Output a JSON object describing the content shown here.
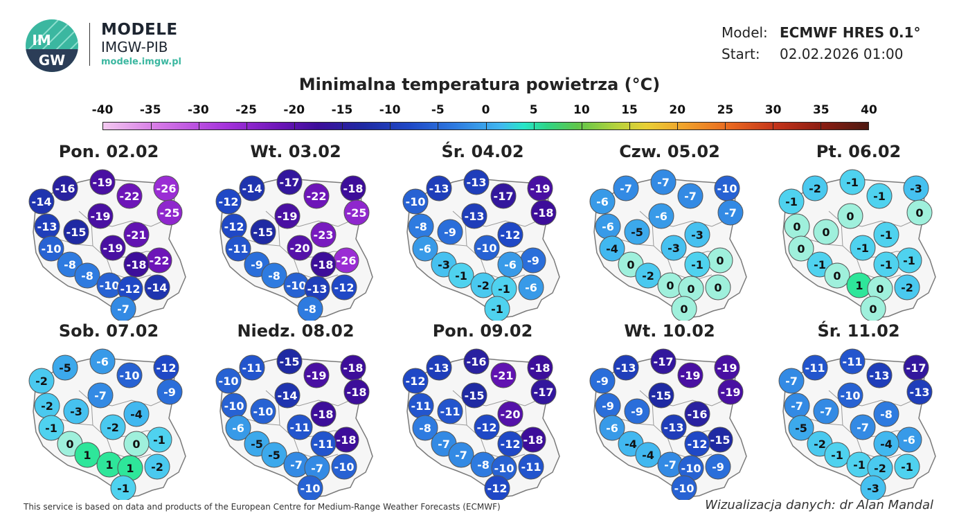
{
  "header": {
    "brand_name": "MODELE",
    "brand_org": "IMGW-PIB",
    "brand_url": "modele.imgw.pl",
    "logo_top": "IM",
    "logo_bottom": "GW",
    "model_label": "Model:",
    "model_value": "ECMWF HRES 0.1°",
    "start_label": "Start:",
    "start_value": "02.02.2026 01:00"
  },
  "title": "Minimalna temperatura powietrza (°C)",
  "scale": {
    "ticks": [
      "-40",
      "-35",
      "-30",
      "-25",
      "-20",
      "-15",
      "-10",
      "-5",
      "0",
      "5",
      "10",
      "15",
      "20",
      "25",
      "30",
      "35",
      "40"
    ],
    "min": -40,
    "max": 40
  },
  "colors": {
    "map_fill": "#f6f6f6",
    "border": "#7a7a7a",
    "stops": [
      [
        -40,
        "#f3c9f0"
      ],
      [
        -34,
        "#d67ae6"
      ],
      [
        -27,
        "#a533db"
      ],
      [
        -22,
        "#6d15b8"
      ],
      [
        -18,
        "#3d0e9a"
      ],
      [
        -15,
        "#1f2aa3"
      ],
      [
        -12,
        "#1f48c6"
      ],
      [
        -8,
        "#2e7be0"
      ],
      [
        -4,
        "#41b8f0"
      ],
      [
        -1,
        "#4fd2ef"
      ],
      [
        0,
        "#9ff0dc"
      ],
      [
        1,
        "#2ee69a"
      ],
      [
        5,
        "#2fd486"
      ],
      [
        10,
        "#5fc64a"
      ],
      [
        15,
        "#b4d23c"
      ],
      [
        20,
        "#e9cf35"
      ],
      [
        25,
        "#f0a12c"
      ],
      [
        30,
        "#e8671f"
      ],
      [
        35,
        "#c2331a"
      ],
      [
        40,
        "#4e1a12"
      ]
    ]
  },
  "panels": [
    {
      "day": "Pon. 02.02",
      "values": [
        "-16",
        "-19",
        "-26",
        "-14",
        "-22",
        "-25",
        "-13",
        "-15",
        "-19",
        "-21",
        "-10",
        "-19",
        "-22",
        "-8",
        "-18",
        "-8",
        "-10",
        "-12",
        "-14",
        "-7"
      ]
    },
    {
      "day": "Wt. 03.02",
      "values": [
        "-14",
        "-17",
        "-18",
        "-12",
        "-22",
        "-25",
        "-12",
        "-15",
        "-19",
        "-23",
        "-11",
        "-20",
        "-26",
        "-9",
        "-18",
        "-8",
        "-10",
        "-13",
        "-12",
        "-8"
      ]
    },
    {
      "day": "Śr. 04.02",
      "values": [
        "-13",
        "-13",
        "-19",
        "-10",
        "-17",
        "-18",
        "-8",
        "-9",
        "-13",
        "-12",
        "-6",
        "-10",
        "-9",
        "-3",
        "-6",
        "-1",
        "-2",
        "-1",
        "-6",
        "-1"
      ]
    },
    {
      "day": "Czw. 05.02",
      "values": [
        "-7",
        "-7",
        "-10",
        "-6",
        "-7",
        "-7",
        "-6",
        "-5",
        "-6",
        "-3",
        "-4",
        "-3",
        "0",
        "0",
        "-1",
        "-2",
        "0",
        "0",
        "0",
        "0"
      ]
    },
    {
      "day": "Pt. 06.02",
      "values": [
        "-2",
        "-1",
        "-3",
        "-1",
        "-1",
        "0",
        "0",
        "0",
        "0",
        "-1",
        "0",
        "-1",
        "-1",
        "-1",
        "-1",
        "0",
        "1",
        "0",
        "-2",
        "0"
      ]
    },
    {
      "day": "Sob. 07.02",
      "values": [
        "-5",
        "-6",
        "-12",
        "-2",
        "-10",
        "-9",
        "-2",
        "-3",
        "-7",
        "-4",
        "-1",
        "-2",
        "-1",
        "0",
        "0",
        "1",
        "1",
        "1",
        "-2",
        "-1"
      ]
    },
    {
      "day": "Niedz. 08.02",
      "values": [
        "-11",
        "-15",
        "-18",
        "-10",
        "-19",
        "-18",
        "-10",
        "-10",
        "-14",
        "-18",
        "-6",
        "-11",
        "-18",
        "-5",
        "-11",
        "-5",
        "-7",
        "-7",
        "-10",
        "-10"
      ]
    },
    {
      "day": "Pon. 09.02",
      "values": [
        "-13",
        "-16",
        "-18",
        "-12",
        "-21",
        "-17",
        "-11",
        "-11",
        "-15",
        "-20",
        "-8",
        "-12",
        "-18",
        "-7",
        "-12",
        "-7",
        "-8",
        "-10",
        "-11",
        "-12"
      ]
    },
    {
      "day": "Wt. 10.02",
      "values": [
        "-13",
        "-17",
        "-19",
        "-9",
        "-19",
        "-19",
        "-9",
        "-9",
        "-15",
        "-16",
        "-6",
        "-13",
        "-15",
        "-4",
        "-12",
        "-4",
        "-7",
        "-10",
        "-9",
        "-10"
      ]
    },
    {
      "day": "Śr. 11.02",
      "values": [
        "-11",
        "-11",
        "-17",
        "-7",
        "-13",
        "-13",
        "-7",
        "-7",
        "-10",
        "-8",
        "-5",
        "-7",
        "-6",
        "-2",
        "-4",
        "-1",
        "-1",
        "-2",
        "-1",
        "-3"
      ]
    }
  ],
  "footer": {
    "attribution": "This service is based on data and products of the European Centre for Medium-Range Weather Forecasts (ECMWF)",
    "credit": "Wizualizacja danych: dr Alan Mandal"
  }
}
